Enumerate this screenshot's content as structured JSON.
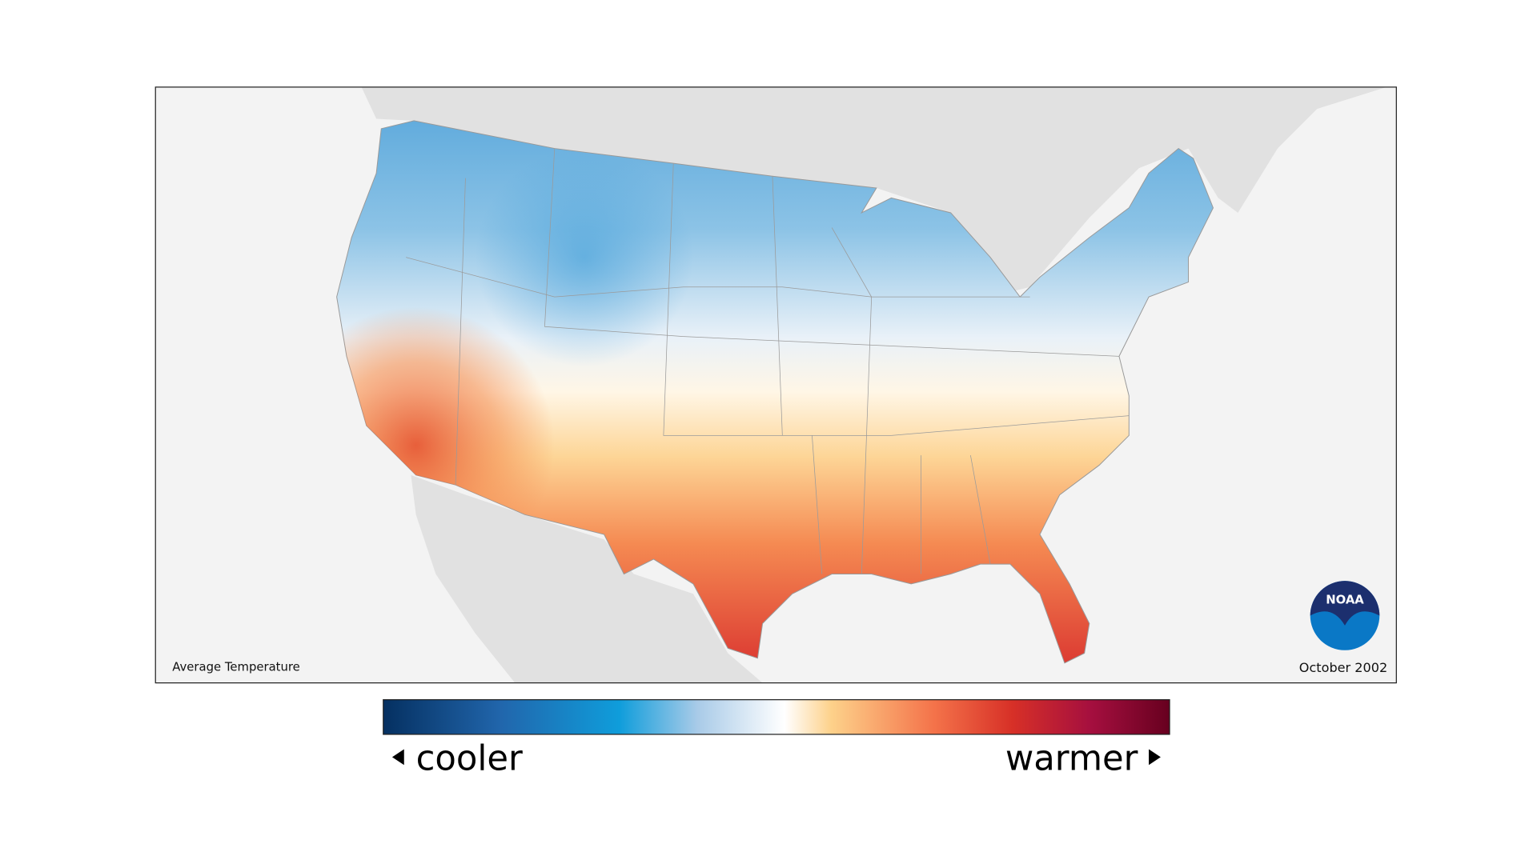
{
  "map": {
    "title": "Average Temperature",
    "date": "October 2002",
    "logo": "NOAA",
    "legend": {
      "low_label": "cooler",
      "high_label": "warmer"
    }
  }
}
